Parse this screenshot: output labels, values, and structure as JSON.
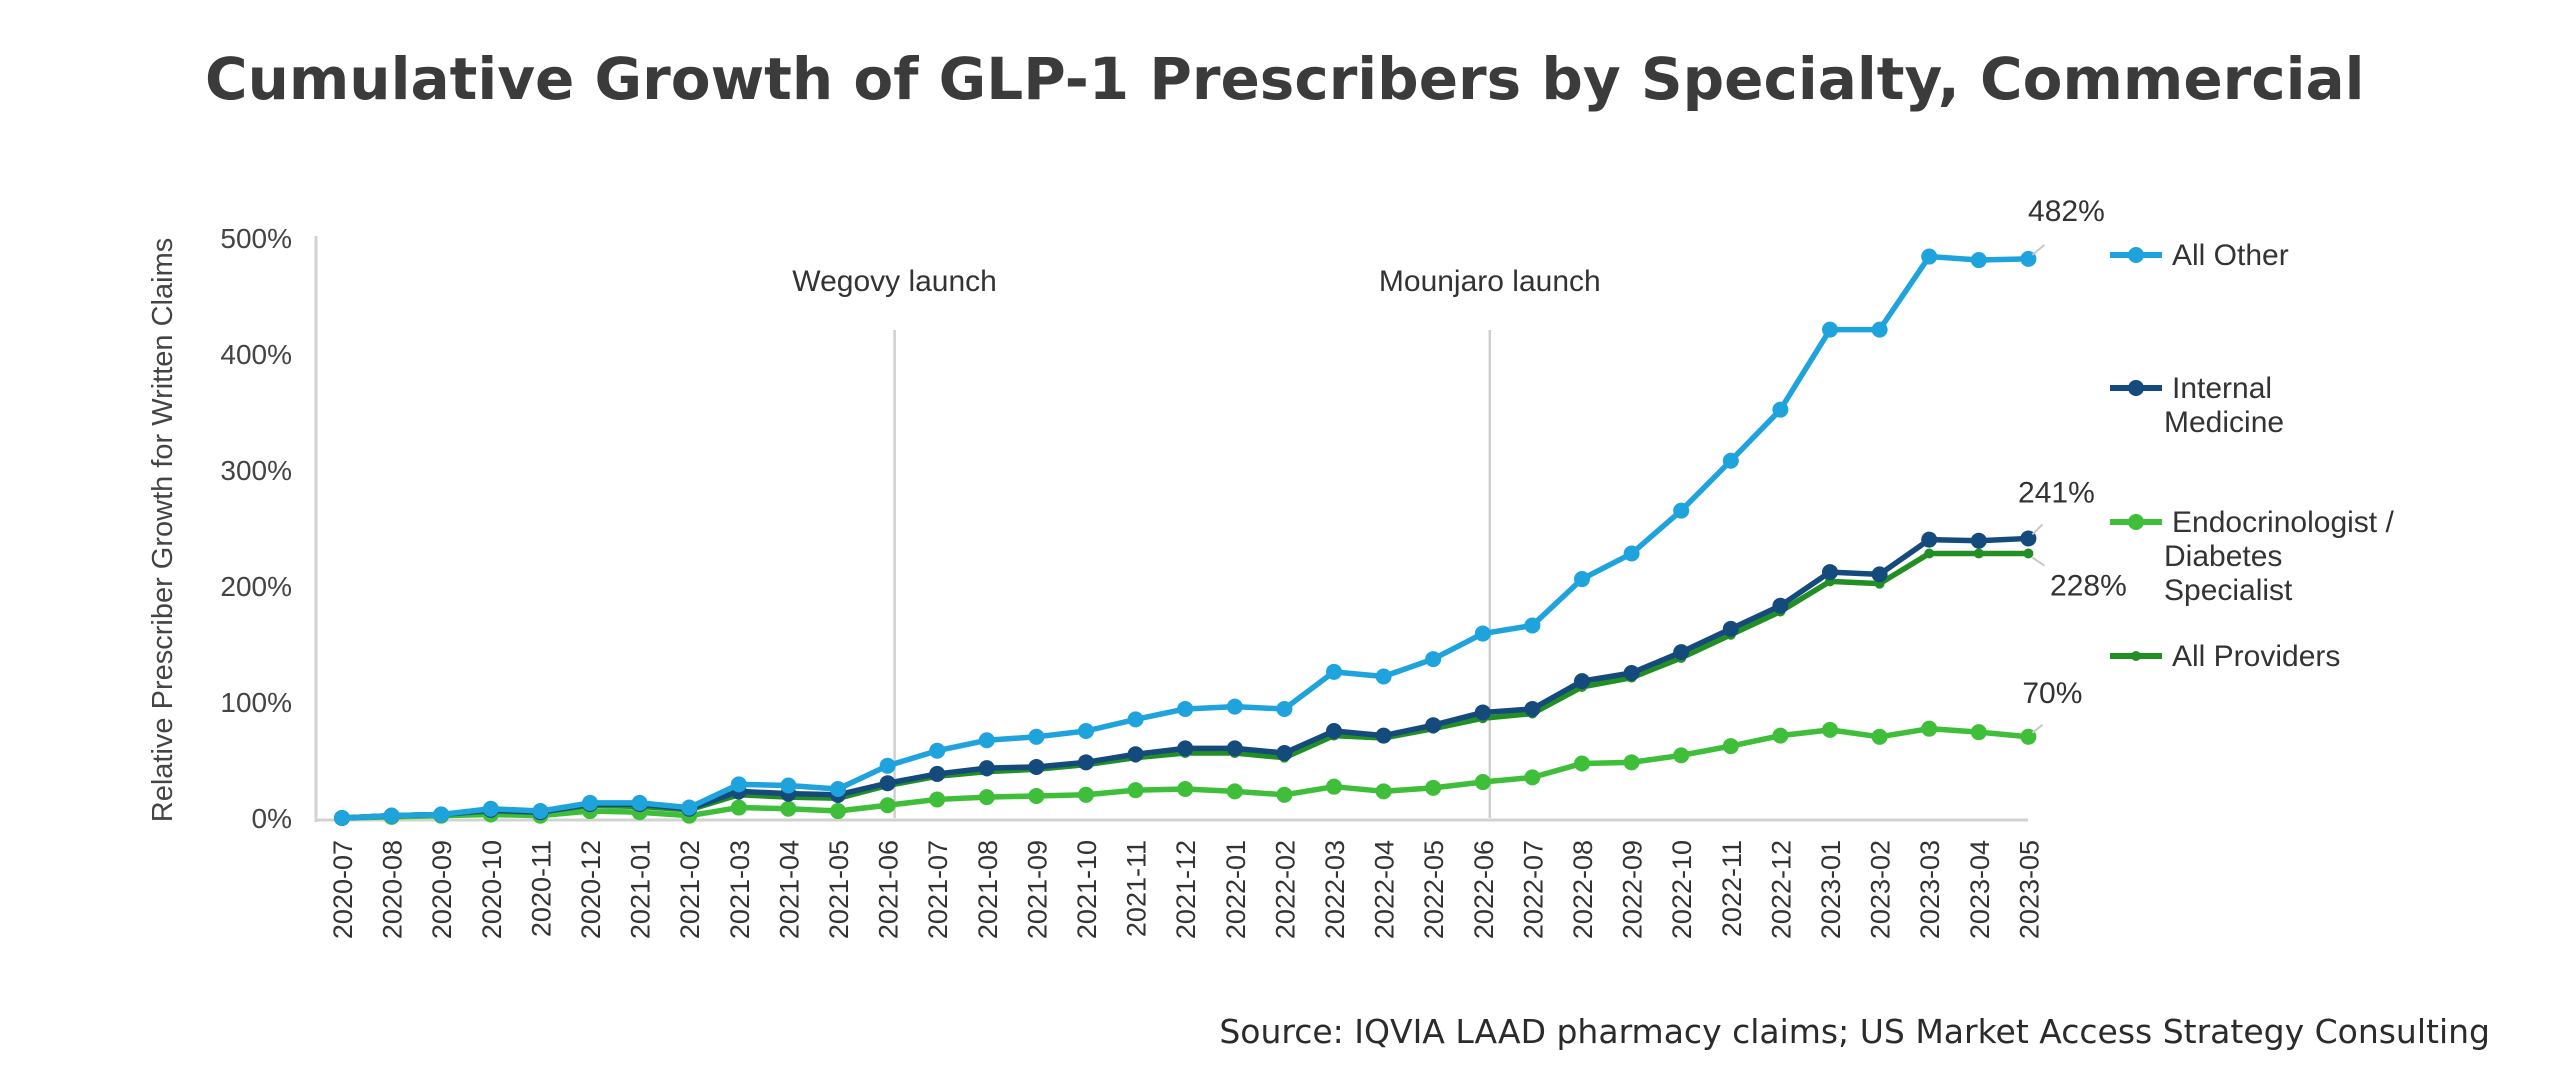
{
  "title": "Cumulative Growth of GLP-1 Prescribers by Specialty, Commercial",
  "source": "Source: IQVIA LAAD pharmacy claims; US Market Access Strategy Consulting",
  "chart_data": {
    "type": "line",
    "title": "Cumulative Growth of GLP-1 Prescribers by Specialty, Commercial",
    "ylabel": "Relative Prescriber Growth for Written Claims",
    "xlabel": "",
    "ylim": [
      0,
      500
    ],
    "yticks": [
      "0%",
      "100%",
      "200%",
      "300%",
      "400%",
      "500%"
    ],
    "grid": false,
    "legend_position": "right",
    "categories": [
      "2020-07",
      "2020-08",
      "2020-09",
      "2020-10",
      "2020-11",
      "2020-12",
      "2021-01",
      "2021-02",
      "2021-03",
      "2021-04",
      "2021-05",
      "2021-06",
      "2021-07",
      "2021-08",
      "2021-09",
      "2021-10",
      "2021-11",
      "2021-12",
      "2022-01",
      "2022-02",
      "2022-03",
      "2022-04",
      "2022-05",
      "2022-06",
      "2022-07",
      "2022-08",
      "2022-09",
      "2022-10",
      "2022-11",
      "2022-12",
      "2023-01",
      "2023-02",
      "2023-03",
      "2023-04",
      "2023-05"
    ],
    "series": [
      {
        "name": "All Other",
        "color": "#1fa3dc",
        "marker": "circle",
        "values": [
          0,
          2,
          3,
          8,
          6,
          13,
          13,
          9,
          29,
          28,
          25,
          45,
          58,
          67,
          70,
          75,
          85,
          94,
          96,
          94,
          126,
          122,
          137,
          159,
          166,
          206,
          228,
          265,
          308,
          352,
          421,
          421,
          484,
          481,
          482
        ]
      },
      {
        "name": "Internal Medicine",
        "color": "#154a7c",
        "marker": "circle",
        "values": [
          0,
          2,
          3,
          7,
          5,
          12,
          12,
          8,
          23,
          21,
          20,
          30,
          38,
          43,
          44,
          48,
          55,
          60,
          60,
          56,
          75,
          71,
          80,
          91,
          94,
          118,
          125,
          143,
          163,
          183,
          212,
          210,
          240,
          239,
          241
        ]
      },
      {
        "name": "Endocrinologist / Diabetes Specialist",
        "color": "#3fbe3a",
        "marker": "circle",
        "values": [
          0,
          1,
          2,
          3,
          2,
          6,
          5,
          2,
          9,
          8,
          6,
          11,
          16,
          18,
          19,
          20,
          24,
          25,
          23,
          20,
          27,
          23,
          26,
          31,
          35,
          47,
          48,
          54,
          62,
          71,
          76,
          70,
          77,
          74,
          70
        ]
      },
      {
        "name": "All Providers",
        "color": "#228f24",
        "marker": "small",
        "values": [
          0,
          2,
          3,
          6,
          5,
          11,
          10,
          7,
          20,
          18,
          17,
          28,
          36,
          40,
          42,
          46,
          52,
          56,
          56,
          52,
          71,
          69,
          77,
          86,
          90,
          113,
          121,
          138,
          158,
          178,
          204,
          202,
          228,
          228,
          228
        ]
      }
    ],
    "annotations": [
      {
        "text": "Wegovy launch",
        "x": "2021-06"
      },
      {
        "text": "Mounjaro launch",
        "x": "2022-06"
      },
      {
        "text": "482%",
        "series": "All Other"
      },
      {
        "text": "241%",
        "series": "Internal Medicine"
      },
      {
        "text": "228%",
        "series": "All Providers"
      },
      {
        "text": "70%",
        "series": "Endocrinologist / Diabetes Specialist"
      }
    ]
  }
}
